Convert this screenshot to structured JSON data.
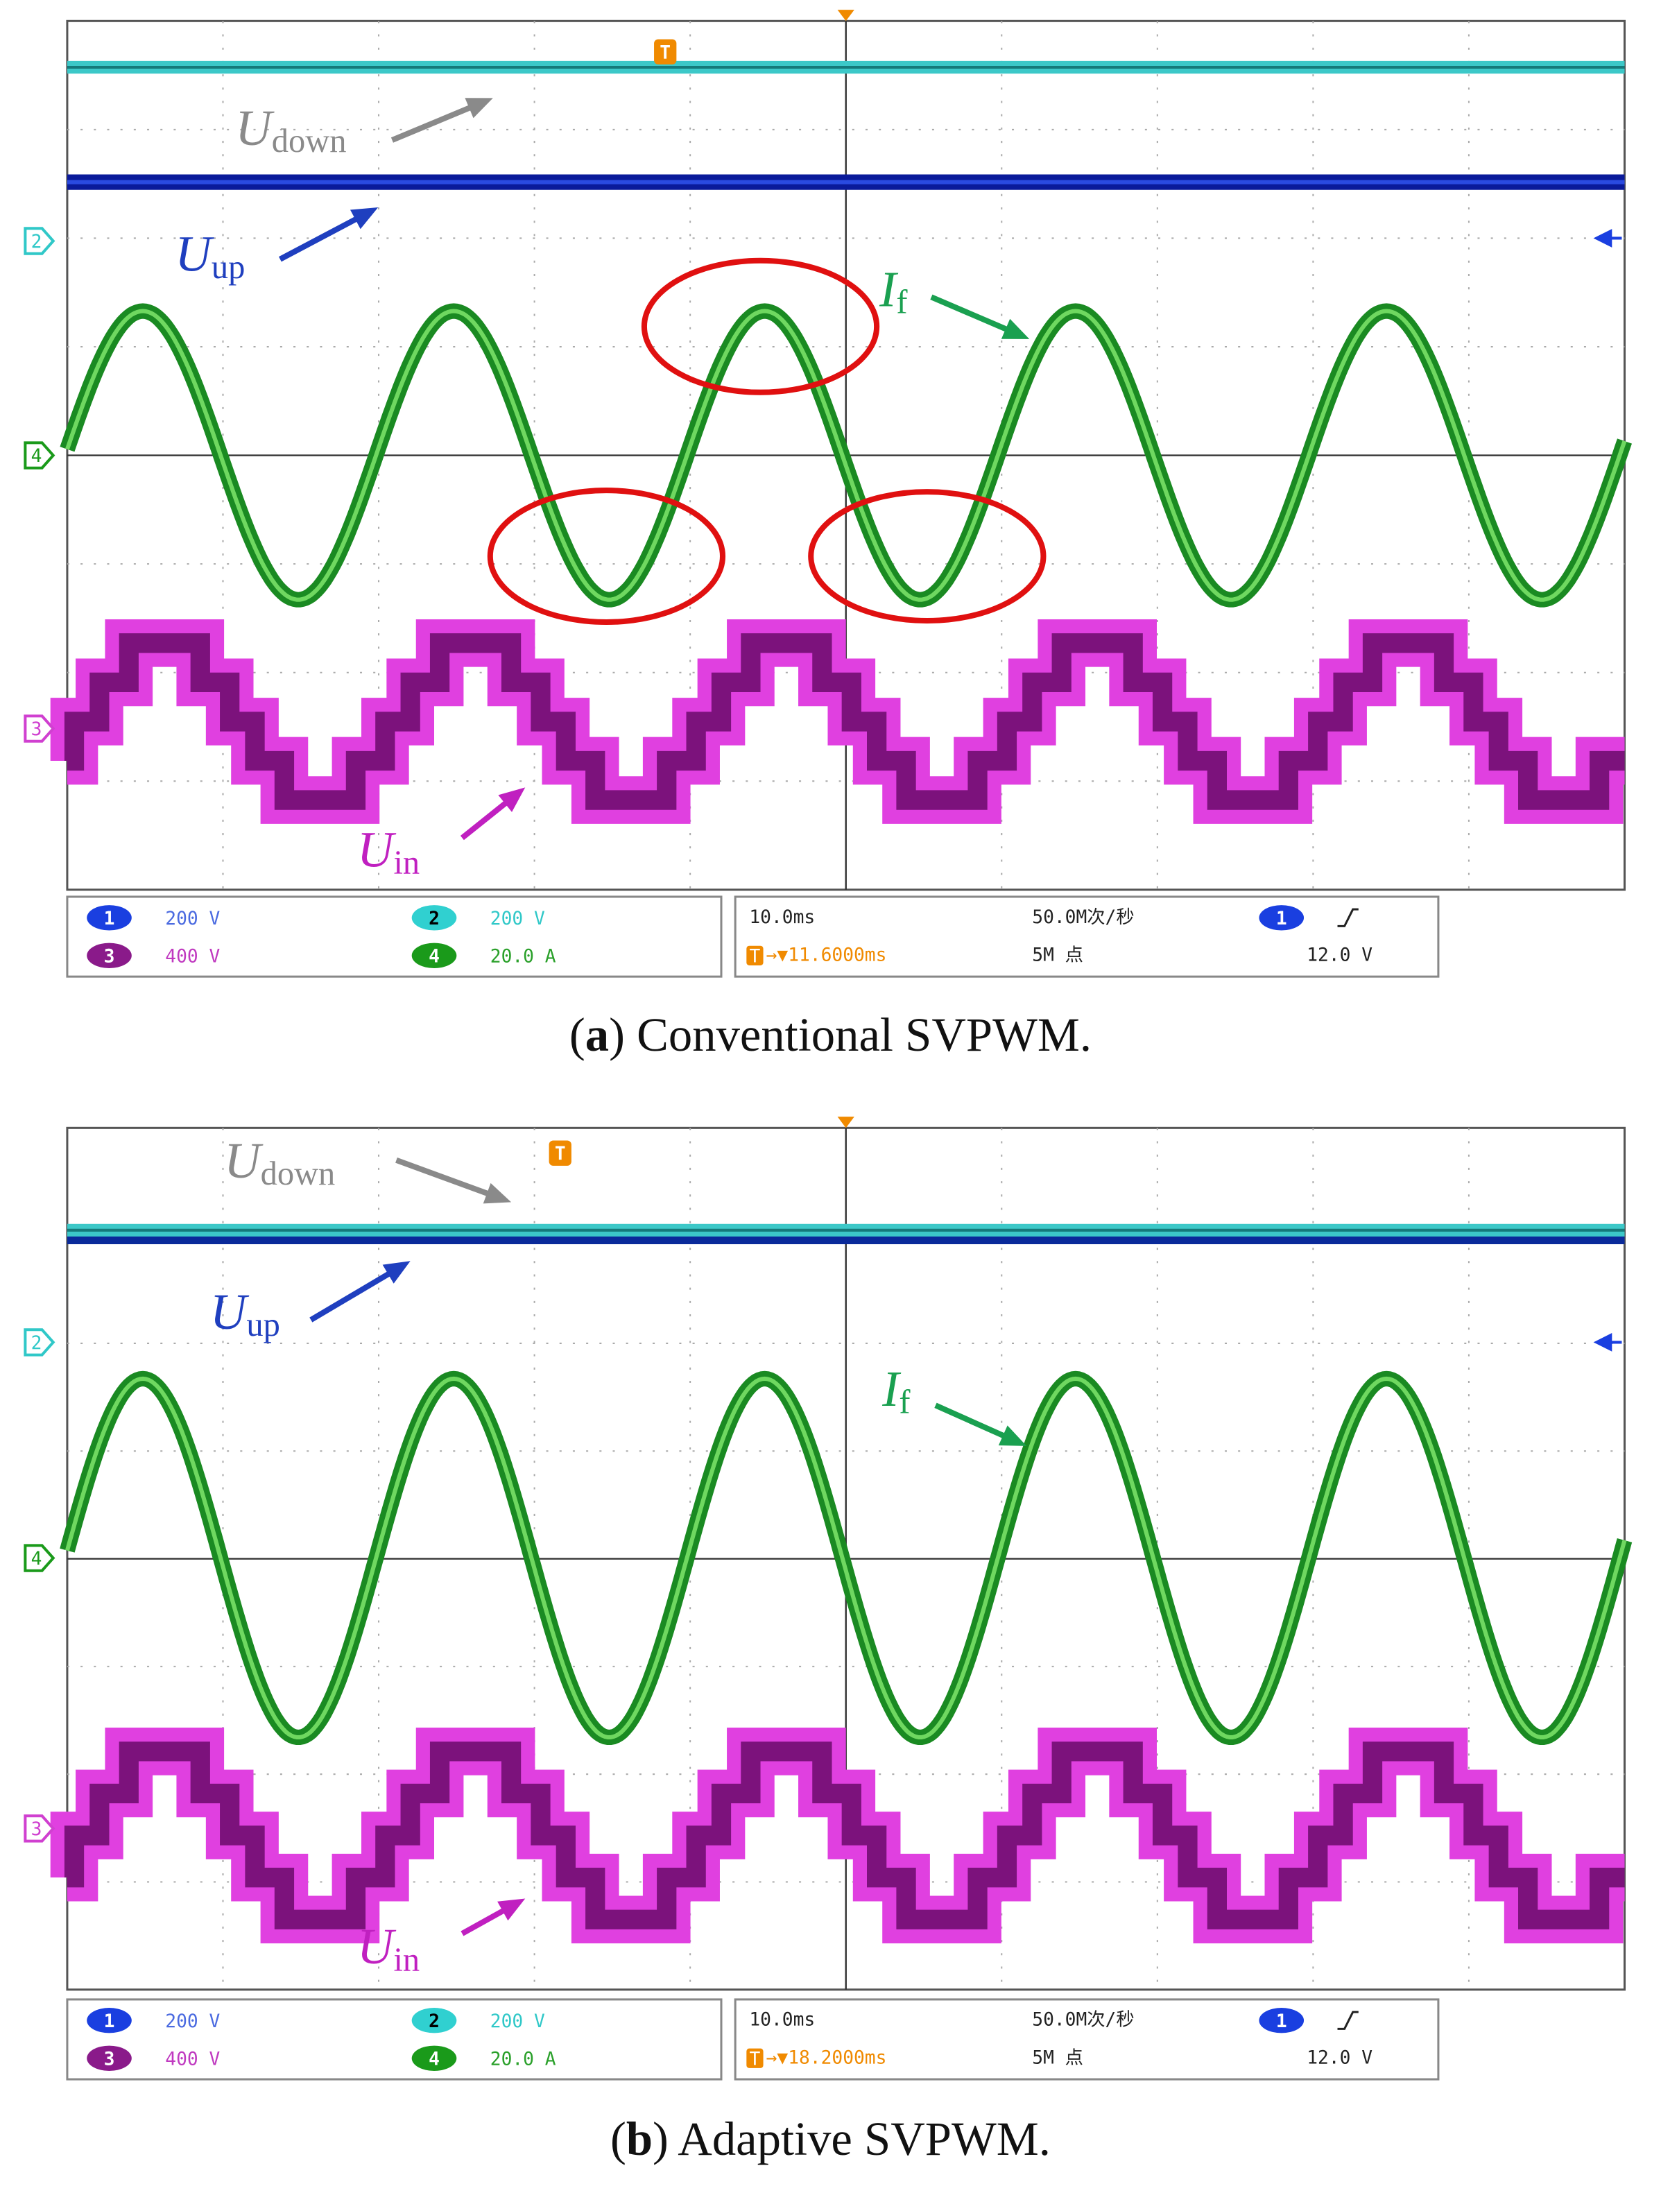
{
  "panels": [
    {
      "annotations": {
        "u_down": {
          "symbol": "U",
          "subscript": "down"
        },
        "u_up": {
          "symbol": "U",
          "subscript": "up"
        },
        "i_f": {
          "symbol": "I",
          "subscript": "f"
        },
        "u_in": {
          "symbol": "U",
          "subscript": "in"
        }
      },
      "channel_markers": [
        "2",
        "4",
        "3"
      ],
      "trigger_marker": "T",
      "readout": {
        "ch1": {
          "number": "1",
          "scale": "200 V"
        },
        "ch2": {
          "number": "2",
          "scale": "200 V"
        },
        "ch3": {
          "number": "3",
          "scale": "400 V"
        },
        "ch4": {
          "number": "4",
          "scale": "20.0 A"
        },
        "timebase": "10.0ms",
        "sample_rate": "50.0M次/秒",
        "trigger_source": "1",
        "trigger_level": "12.0 V",
        "trigger_offset": "→▼11.6000ms",
        "record_length": "5M 点"
      },
      "caption": {
        "open": "(",
        "label": "a",
        "text": ") Conventional SVPWM."
      }
    },
    {
      "annotations": {
        "u_down": {
          "symbol": "U",
          "subscript": "down"
        },
        "u_up": {
          "symbol": "U",
          "subscript": "up"
        },
        "i_f": {
          "symbol": "I",
          "subscript": "f"
        },
        "u_in": {
          "symbol": "U",
          "subscript": "in"
        }
      },
      "channel_markers": [
        "2",
        "4",
        "3"
      ],
      "trigger_marker": "T",
      "readout": {
        "ch1": {
          "number": "1",
          "scale": "200 V"
        },
        "ch2": {
          "number": "2",
          "scale": "200 V"
        },
        "ch3": {
          "number": "3",
          "scale": "400 V"
        },
        "ch4": {
          "number": "4",
          "scale": "20.0 A"
        },
        "timebase": "10.0ms",
        "sample_rate": "50.0M次/秒",
        "trigger_source": "1",
        "trigger_level": "12.0 V",
        "trigger_offset": "→▼18.2000ms",
        "record_length": "5M 点"
      },
      "caption": {
        "open": "(",
        "label": "b",
        "text": ") Adaptive SVPWM."
      }
    }
  ]
}
